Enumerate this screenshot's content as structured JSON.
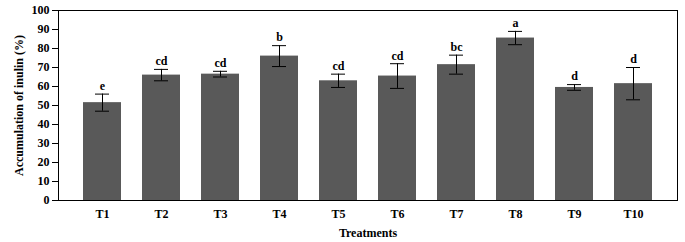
{
  "chart_data": {
    "type": "bar",
    "x_label": "Treatments",
    "y_label": "Accumulation of inulin (%)",
    "categories": [
      "T1",
      "T2",
      "T3",
      "T4",
      "T5",
      "T6",
      "T7",
      "T8",
      "T9",
      "T10"
    ],
    "values": [
      51.5,
      66,
      66.5,
      76,
      63,
      65.5,
      71.5,
      85.5,
      59.5,
      61.5
    ],
    "errors": [
      4.5,
      3,
      1.5,
      5.5,
      3.5,
      6.5,
      5,
      3.5,
      1.5,
      8.5
    ],
    "annotations": [
      "e",
      "cd",
      "cd",
      "b",
      "cd",
      "cd",
      "bc",
      "a",
      "d",
      "d"
    ],
    "color": "#595959",
    "ylim": [
      0,
      100
    ],
    "yticks": [
      0,
      10,
      20,
      30,
      40,
      50,
      60,
      70,
      80,
      90,
      100
    ],
    "grid": false
  }
}
